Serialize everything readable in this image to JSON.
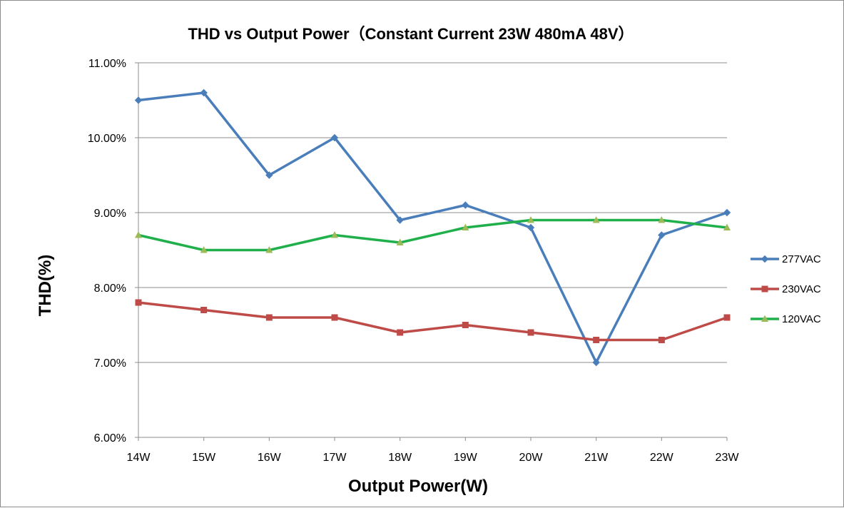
{
  "chart_data": {
    "type": "line",
    "title": "THD vs Output Power（Constant Current 23W  480mA 48V）",
    "xlabel": "Output Power(W)",
    "ylabel": "THD(%)",
    "categories": [
      "14W",
      "15W",
      "16W",
      "17W",
      "18W",
      "19W",
      "20W",
      "21W",
      "22W",
      "23W"
    ],
    "ylim": [
      6.0,
      11.0
    ],
    "yticks": [
      6.0,
      7.0,
      8.0,
      9.0,
      10.0,
      11.0
    ],
    "ytick_labels": [
      "6.00%",
      "7.00%",
      "8.00%",
      "9.00%",
      "10.00%",
      "11.00%"
    ],
    "grid": "horizontal",
    "legend_position": "right",
    "series": [
      {
        "name": "277VAC",
        "color": "#4a7ebb",
        "marker": "diamond",
        "values": [
          10.5,
          10.6,
          9.5,
          10.0,
          8.9,
          9.1,
          8.8,
          7.0,
          8.7,
          9.0
        ]
      },
      {
        "name": "230VAC",
        "color": "#be4b48",
        "marker": "square",
        "values": [
          7.8,
          7.7,
          7.6,
          7.6,
          7.4,
          7.5,
          7.4,
          7.3,
          7.3,
          7.6
        ]
      },
      {
        "name": "120VAC",
        "color": "#1fb04b",
        "marker": "triangle",
        "marker_color": "#9bbb59",
        "values": [
          8.7,
          8.5,
          8.5,
          8.7,
          8.6,
          8.8,
          8.9,
          8.9,
          8.9,
          8.8
        ]
      }
    ]
  }
}
